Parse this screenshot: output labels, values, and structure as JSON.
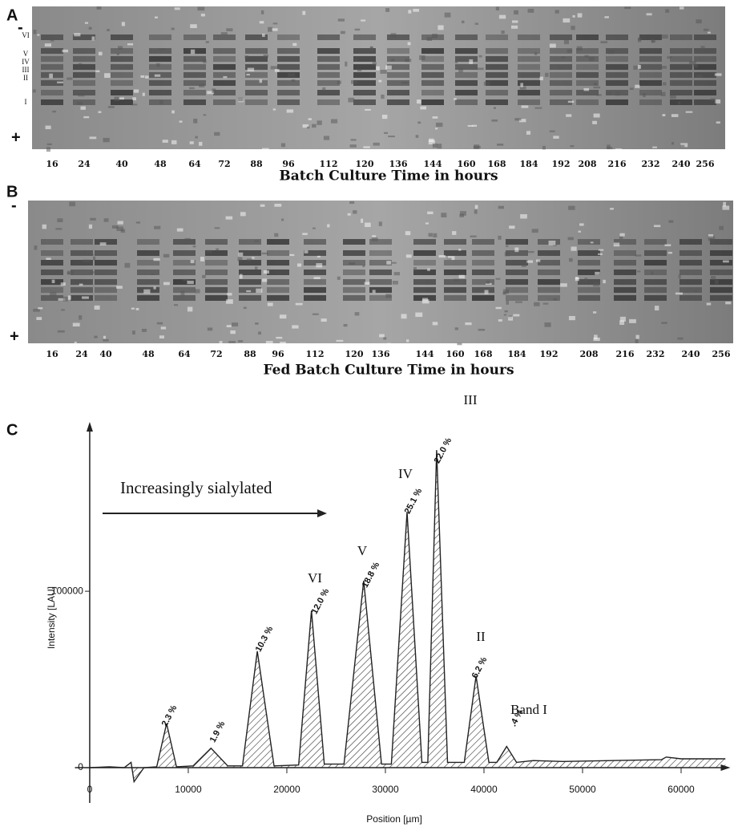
{
  "panel_a": {
    "label": "A",
    "polarity": [
      "-",
      "+"
    ],
    "bands": [
      "VI",
      "V",
      "IV",
      "III",
      "II",
      "I"
    ],
    "lanes": [
      "16",
      "24",
      "40",
      "48",
      "64",
      "72",
      "88",
      "96",
      "112",
      "120",
      "136",
      "144",
      "160",
      "168",
      "184",
      "192",
      "208",
      "216",
      "232",
      "240",
      "256"
    ],
    "axis_title": "Batch Culture Time in hours"
  },
  "panel_b": {
    "label": "B",
    "polarity": [
      "-",
      "+"
    ],
    "lanes": [
      "16",
      "24",
      "40",
      "48",
      "64",
      "72",
      "88",
      "96",
      "112",
      "120",
      "136",
      "144",
      "160",
      "168",
      "184",
      "192",
      "208",
      "216",
      "232",
      "240",
      "256"
    ],
    "axis_title": "Fed Batch Culture Time in hours"
  },
  "chart_data": {
    "type": "line",
    "panel_label": "C",
    "x_label": "Position [µm]",
    "y_label": "Intensity [LAU]",
    "annotation": "Increasingly sialylated",
    "x": [
      0,
      2000,
      3500,
      4200,
      4500,
      5500,
      6800,
      7800,
      8800,
      10500,
      12300,
      14000,
      15500,
      17000,
      18700,
      21200,
      22500,
      23800,
      25800,
      27800,
      29600,
      30600,
      32200,
      33700,
      34300,
      35200,
      36300,
      38000,
      39200,
      40500,
      41300,
      42300,
      43300,
      45000,
      48000,
      58000,
      58500,
      60000,
      64500
    ],
    "series": [
      {
        "color": "#222222",
        "values": [
          0,
          500,
          0,
          3000,
          -8000,
          0,
          500,
          25000,
          500,
          1000,
          11000,
          1000,
          1000,
          66000,
          1000,
          1500,
          89000,
          2000,
          2000,
          106000,
          2000,
          2000,
          145000,
          3000,
          3000,
          180000,
          3000,
          3000,
          52000,
          3000,
          3000,
          12000,
          3000,
          4000,
          3500,
          4500,
          6000,
          5000,
          5000
        ]
      }
    ],
    "peak_areas": [
      "2.3 %",
      "1.9 %",
      "10.3 %",
      "12.0 %",
      "18.8 %",
      "25.1 %",
      "22.0 %",
      "6.2 %",
      ".4 %"
    ],
    "band_names": [
      "VI",
      "V",
      "IV",
      "III",
      "II",
      "Band I"
    ],
    "xlim": [
      -1500,
      65000
    ],
    "xticks": [
      0,
      10000,
      20000,
      30000,
      40000,
      50000,
      60000
    ],
    "ylim": [
      -20000,
      196000
    ],
    "yticks": [
      0,
      100000
    ]
  }
}
